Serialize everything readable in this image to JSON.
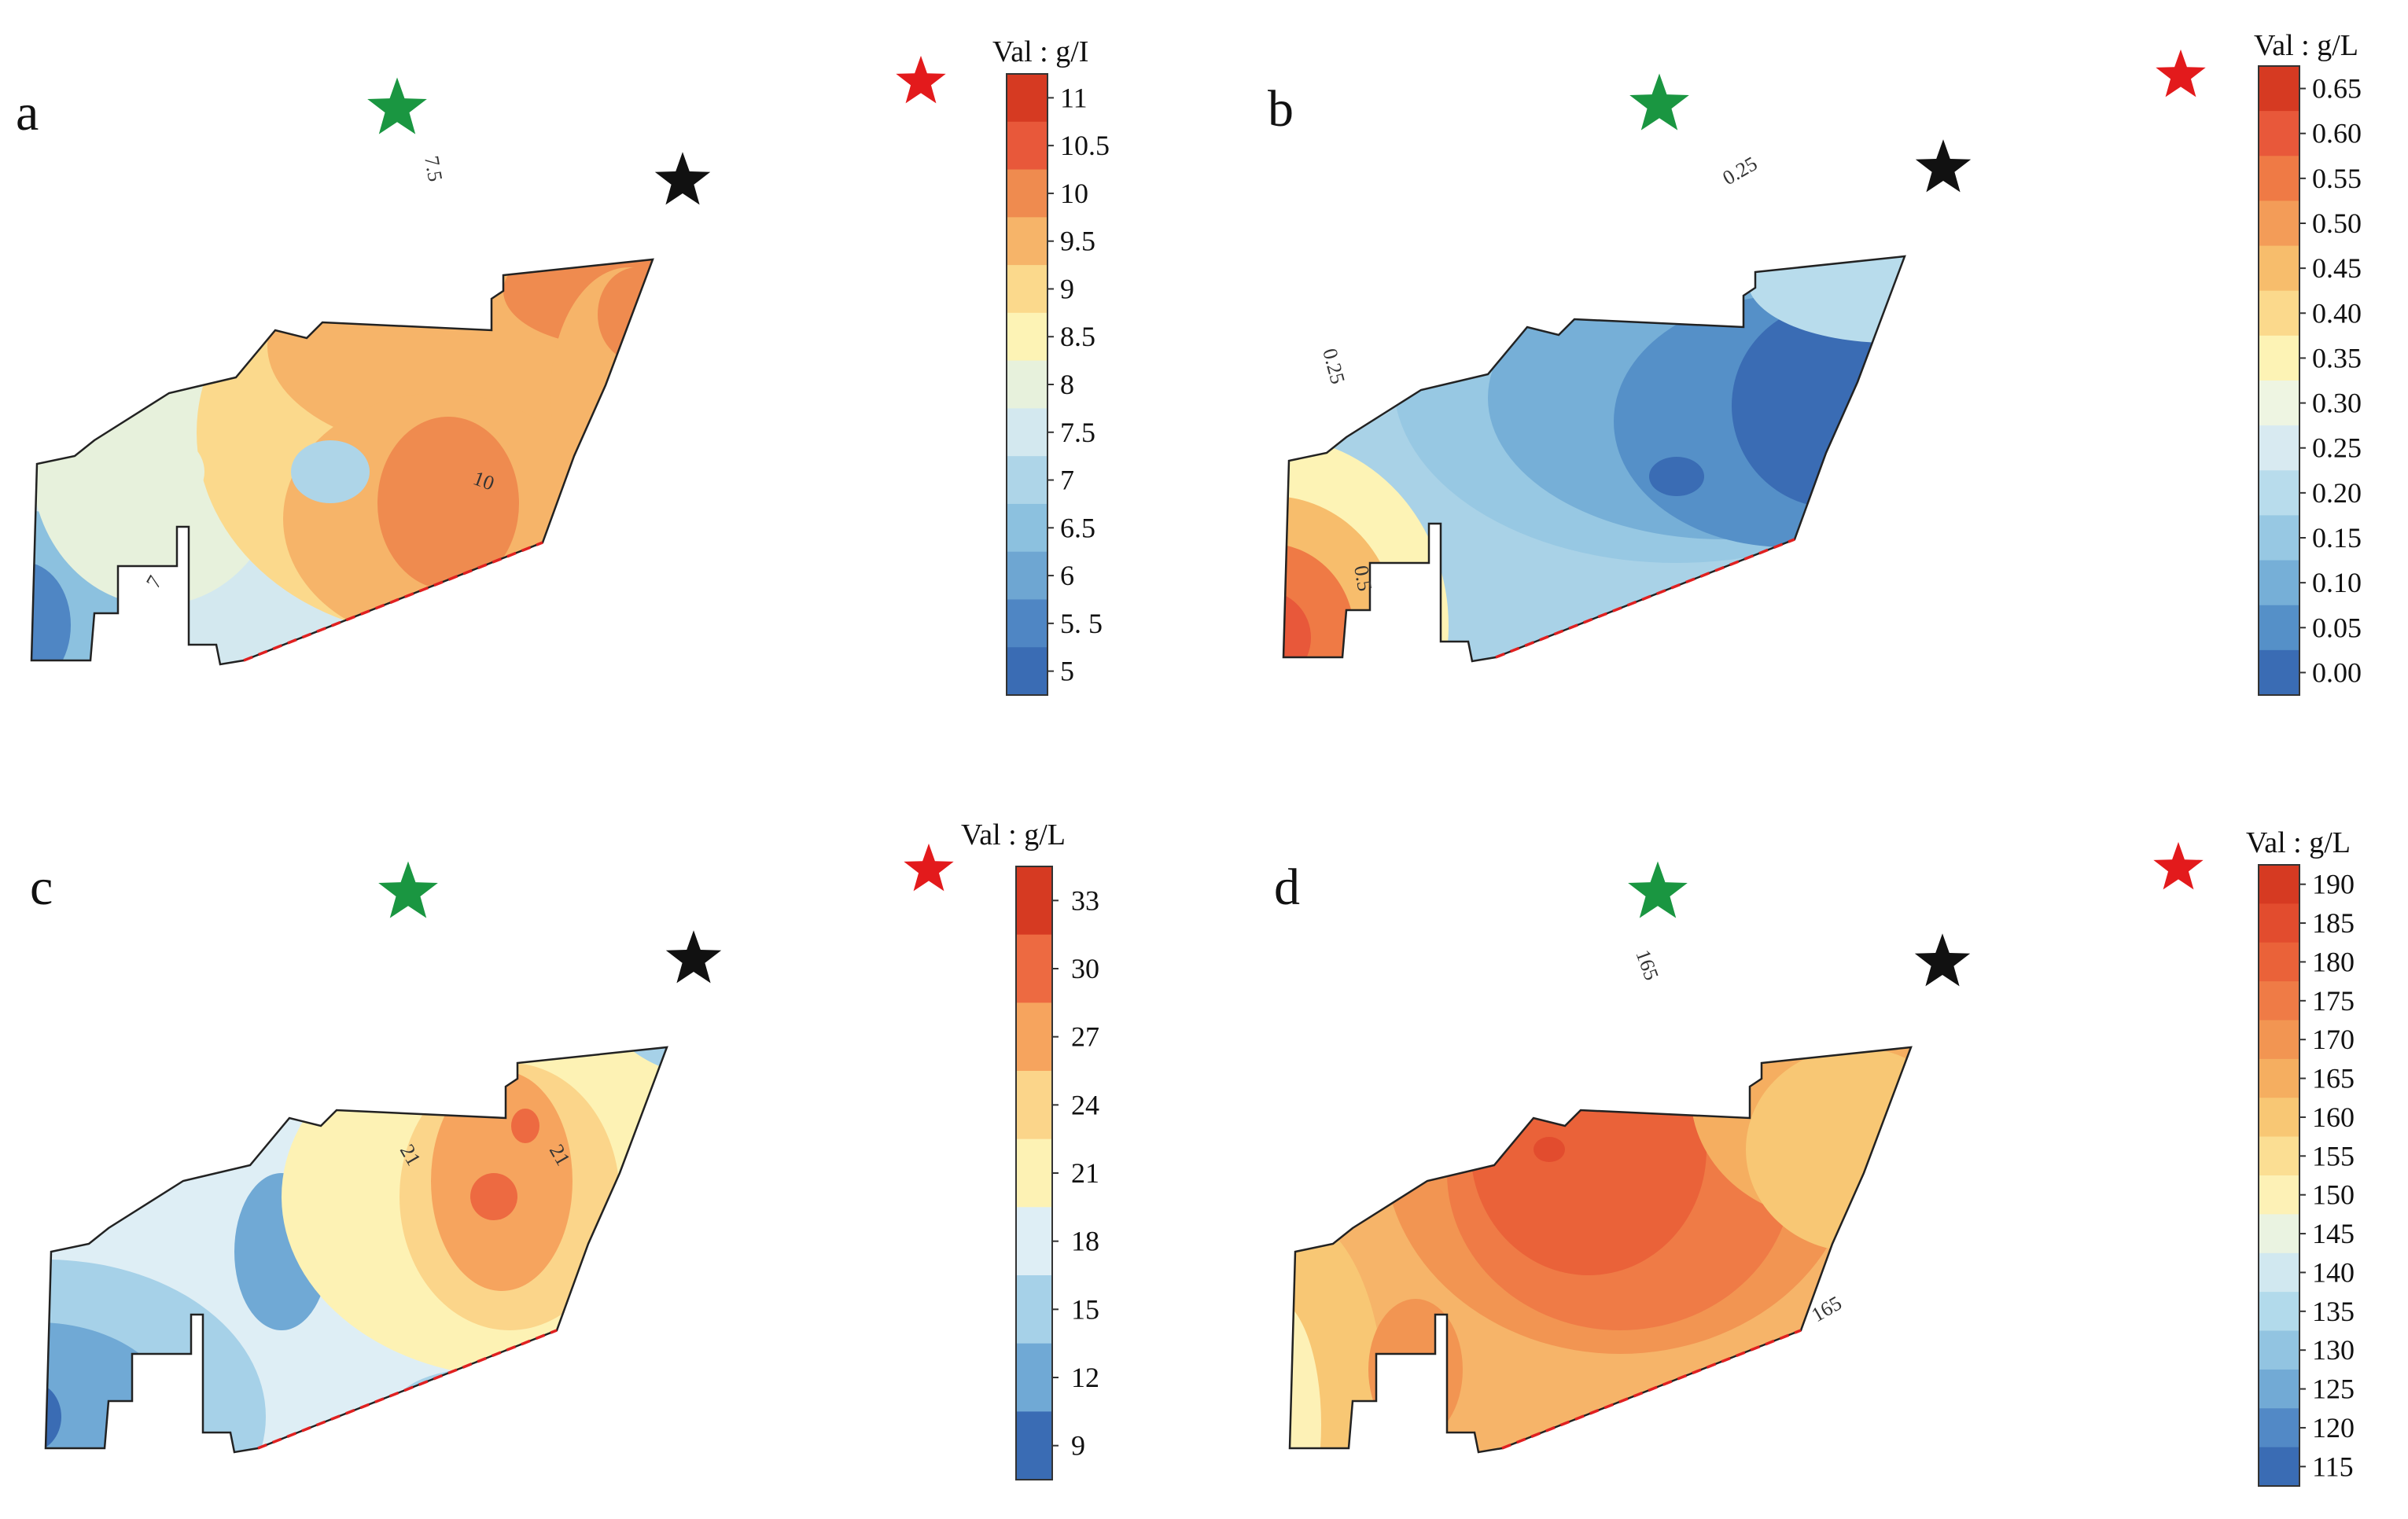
{
  "figure": {
    "panels": [
      {
        "letter": "a",
        "legend_title": "Val : g/I",
        "ticks": [
          "11",
          "10.5",
          "10",
          "9.5",
          "9",
          "8.5",
          "8",
          "7.5",
          "7",
          "6.5",
          "6",
          "5. 5",
          "5"
        ],
        "colors": [
          "#d63a22",
          "#e8583a",
          "#ef8b4f",
          "#f6b469",
          "#fbd98c",
          "#fdf3b5",
          "#e7f1dc",
          "#d3e8ef",
          "#aed5e8",
          "#8cc1df",
          "#6ea6d2",
          "#4f86c4",
          "#3a6cb4"
        ],
        "contour_labels": [
          "7.5",
          "10",
          "7"
        ],
        "base_fill": "#d3e8ef"
      },
      {
        "letter": "b",
        "legend_title": "Val : g/L",
        "ticks": [
          "0.65",
          "0.60",
          "0.55",
          "0.50",
          "0.45",
          "0.40",
          "0.35",
          "0.30",
          "0.25",
          "0.20",
          "0.15",
          "0.10",
          "0.05",
          "0.00"
        ],
        "colors": [
          "#d63a22",
          "#e8583a",
          "#ef7a45",
          "#f39c58",
          "#f7bd6c",
          "#fbd98c",
          "#fdf3b5",
          "#eef5e2",
          "#d8eaf1",
          "#b8dcec",
          "#97c8e3",
          "#76afd7",
          "#5590c8",
          "#3a6cb4"
        ],
        "contour_labels": [
          "0.25",
          "0.25",
          "0.5"
        ],
        "base_fill": "#a9d2e7"
      },
      {
        "letter": "c",
        "legend_title": "Val : g/L",
        "ticks": [
          "33",
          "30",
          "27",
          "24",
          "21",
          "18",
          "15",
          "12",
          "9"
        ],
        "colors": [
          "#d63a22",
          "#ed6a41",
          "#f6a45e",
          "#fbd58a",
          "#fdf2b4",
          "#deeef5",
          "#a6d1e8",
          "#70a9d5",
          "#3a6cb4"
        ],
        "contour_labels": [
          "21",
          "21"
        ],
        "base_fill": "#deeef5"
      },
      {
        "letter": "d",
        "legend_title": "Val : g/L",
        "ticks": [
          "190",
          "185",
          "180",
          "175",
          "170",
          "165",
          "160",
          "155",
          "150",
          "145",
          "140",
          "135",
          "130",
          "125",
          "120",
          "115"
        ],
        "colors": [
          "#d63a22",
          "#e24c2e",
          "#ea6239",
          "#ef7b46",
          "#f29552",
          "#f5ae60",
          "#f8c774",
          "#fbde93",
          "#fdf1b6",
          "#eaf3e1",
          "#d1e8f0",
          "#b2daeb",
          "#92c4e1",
          "#72aad5",
          "#5289c6",
          "#3a6cb4"
        ],
        "contour_labels": [
          "165",
          "165"
        ],
        "base_fill": "#f6b469"
      }
    ],
    "markers": {
      "green_star_color": "#1a9641",
      "red_star_color": "#e31a1c",
      "black_star_color": "#111111"
    }
  }
}
